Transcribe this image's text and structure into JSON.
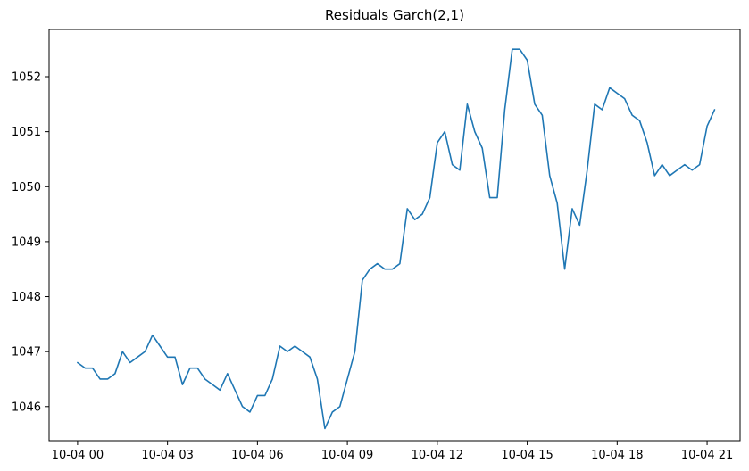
{
  "chart_data": {
    "type": "line",
    "title": "Residuals Garch(2,1)",
    "xlabel": "",
    "ylabel": "",
    "x_unit": "hours from 10-04 00",
    "xlim": [
      -0.95,
      22.1
    ],
    "ylim": [
      1045.38,
      1052.86
    ],
    "grid": false,
    "legend": "none",
    "x_ticks": [
      {
        "value": 0,
        "label": "10-04 00"
      },
      {
        "value": 3,
        "label": "10-04 03"
      },
      {
        "value": 6,
        "label": "10-04 06"
      },
      {
        "value": 9,
        "label": "10-04 09"
      },
      {
        "value": 12,
        "label": "10-04 12"
      },
      {
        "value": 15,
        "label": "10-04 15"
      },
      {
        "value": 18,
        "label": "10-04 18"
      },
      {
        "value": 21,
        "label": "10-04 21"
      }
    ],
    "y_ticks": [
      {
        "value": 1046,
        "label": "1046"
      },
      {
        "value": 1047,
        "label": "1047"
      },
      {
        "value": 1048,
        "label": "1048"
      },
      {
        "value": 1049,
        "label": "1049"
      },
      {
        "value": 1050,
        "label": "1050"
      },
      {
        "value": 1051,
        "label": "1051"
      },
      {
        "value": 1052,
        "label": "1052"
      }
    ],
    "series": [
      {
        "color": "#1f77b4",
        "points": [
          [
            0.0,
            1046.8
          ],
          [
            0.25,
            1046.7
          ],
          [
            0.5,
            1046.7
          ],
          [
            0.75,
            1046.5
          ],
          [
            1.0,
            1046.5
          ],
          [
            1.25,
            1046.6
          ],
          [
            1.5,
            1047.0
          ],
          [
            1.75,
            1046.8
          ],
          [
            2.0,
            1046.9
          ],
          [
            2.25,
            1047.0
          ],
          [
            2.5,
            1047.3
          ],
          [
            2.75,
            1047.1
          ],
          [
            3.0,
            1046.9
          ],
          [
            3.25,
            1046.9
          ],
          [
            3.5,
            1046.4
          ],
          [
            3.75,
            1046.7
          ],
          [
            4.0,
            1046.7
          ],
          [
            4.25,
            1046.5
          ],
          [
            4.5,
            1046.4
          ],
          [
            4.75,
            1046.3
          ],
          [
            5.0,
            1046.6
          ],
          [
            5.25,
            1046.3
          ],
          [
            5.5,
            1046.0
          ],
          [
            5.75,
            1045.9
          ],
          [
            6.0,
            1046.2
          ],
          [
            6.25,
            1046.2
          ],
          [
            6.5,
            1046.5
          ],
          [
            6.75,
            1047.1
          ],
          [
            7.0,
            1047.0
          ],
          [
            7.25,
            1047.1
          ],
          [
            7.5,
            1047.0
          ],
          [
            7.75,
            1046.9
          ],
          [
            8.0,
            1046.5
          ],
          [
            8.25,
            1045.6
          ],
          [
            8.5,
            1045.9
          ],
          [
            8.75,
            1046.0
          ],
          [
            9.0,
            1046.5
          ],
          [
            9.25,
            1047.0
          ],
          [
            9.5,
            1048.3
          ],
          [
            9.75,
            1048.5
          ],
          [
            10.0,
            1048.6
          ],
          [
            10.25,
            1048.5
          ],
          [
            10.5,
            1048.5
          ],
          [
            10.75,
            1048.6
          ],
          [
            11.0,
            1049.6
          ],
          [
            11.25,
            1049.4
          ],
          [
            11.5,
            1049.5
          ],
          [
            11.75,
            1049.8
          ],
          [
            12.0,
            1050.8
          ],
          [
            12.25,
            1051.0
          ],
          [
            12.5,
            1050.4
          ],
          [
            12.75,
            1050.3
          ],
          [
            13.0,
            1051.5
          ],
          [
            13.25,
            1051.0
          ],
          [
            13.5,
            1050.7
          ],
          [
            13.75,
            1049.8
          ],
          [
            14.0,
            1049.8
          ],
          [
            14.25,
            1051.4
          ],
          [
            14.5,
            1052.5
          ],
          [
            14.75,
            1052.5
          ],
          [
            15.0,
            1052.3
          ],
          [
            15.25,
            1051.5
          ],
          [
            15.5,
            1051.3
          ],
          [
            15.75,
            1050.2
          ],
          [
            16.0,
            1049.7
          ],
          [
            16.25,
            1048.5
          ],
          [
            16.5,
            1049.6
          ],
          [
            16.75,
            1049.3
          ],
          [
            17.0,
            1050.3
          ],
          [
            17.25,
            1051.5
          ],
          [
            17.5,
            1051.4
          ],
          [
            17.75,
            1051.8
          ],
          [
            18.0,
            1051.7
          ],
          [
            18.25,
            1051.6
          ],
          [
            18.5,
            1051.3
          ],
          [
            18.75,
            1051.2
          ],
          [
            19.0,
            1050.8
          ],
          [
            19.25,
            1050.2
          ],
          [
            19.5,
            1050.4
          ],
          [
            19.75,
            1050.2
          ],
          [
            20.0,
            1050.3
          ],
          [
            20.25,
            1050.4
          ],
          [
            20.5,
            1050.3
          ],
          [
            20.75,
            1050.4
          ],
          [
            21.0,
            1051.1
          ],
          [
            21.25,
            1051.4
          ]
        ]
      }
    ]
  }
}
